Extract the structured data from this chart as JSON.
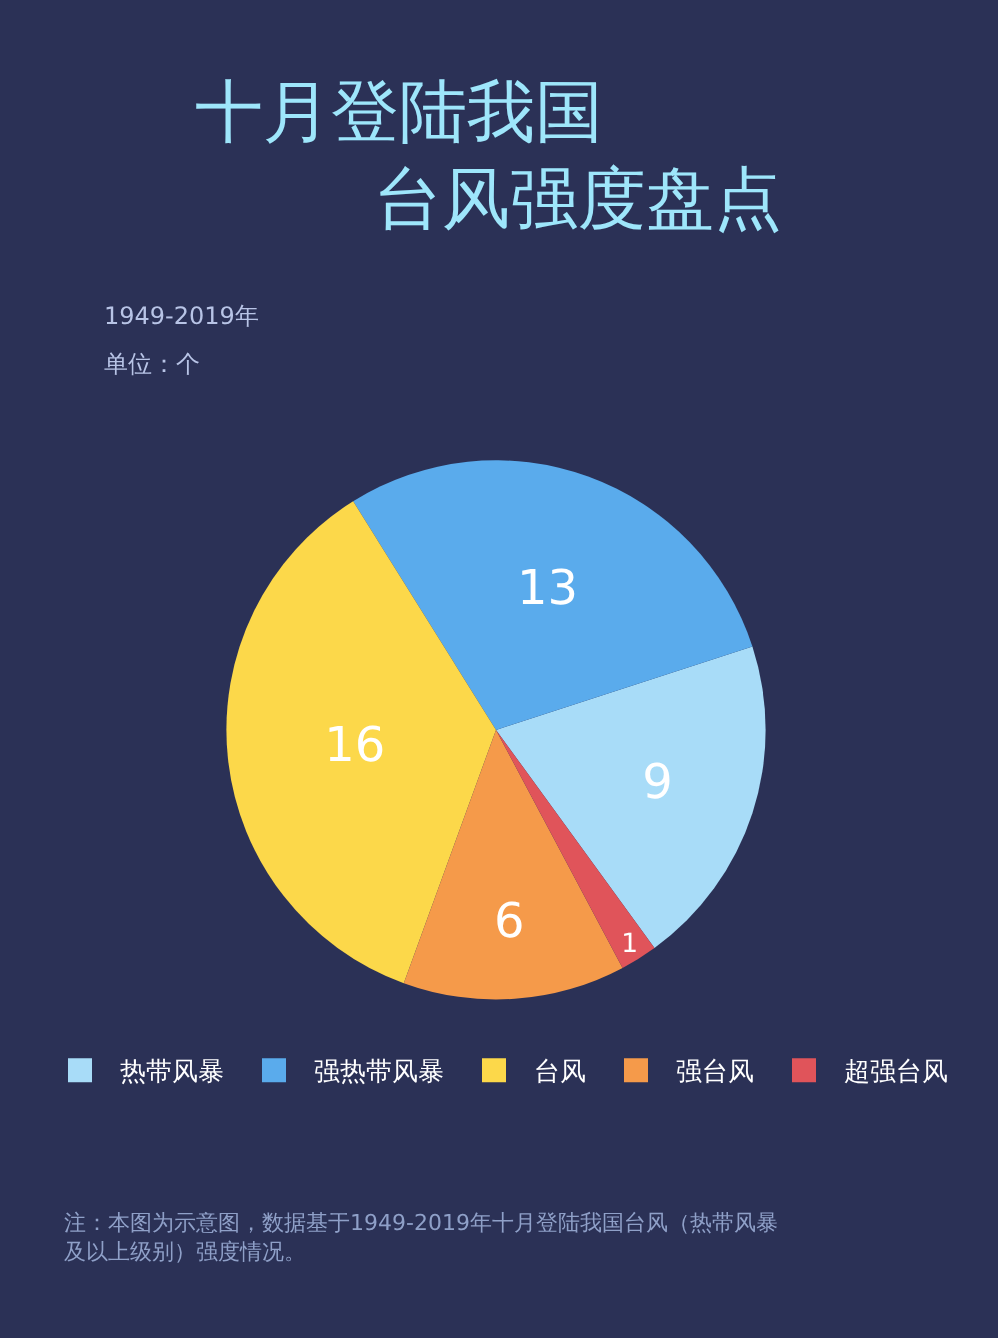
{
  "chart_data": {
    "type": "pie",
    "title": "十月登陆我国",
    "subtitle": "台风强度盘点",
    "annotations": [
      "1949-2019年",
      "单位：个",
      "注：本图为示意图，数据基于1949-2019年十月登陆我国台风（热带风暴及以上级别）强度情况。"
    ],
    "categories": [
      "热带风暴",
      "强热带风暴",
      "台风",
      "强台风",
      "超强台风"
    ],
    "values": [
      9,
      13,
      16,
      6,
      1
    ],
    "colors": [
      "#a8dcf8",
      "#5aabec",
      "#fcd84a",
      "#f59a4a",
      "#e0545a"
    ],
    "data_labels": true,
    "legend": "bottom"
  }
}
